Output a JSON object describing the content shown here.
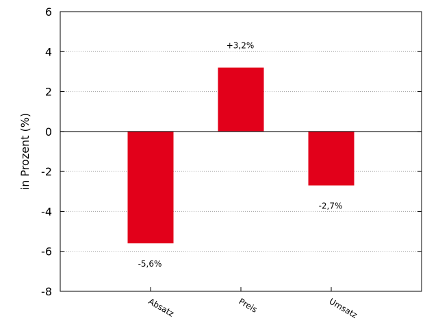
{
  "chart_data": {
    "type": "bar",
    "categories": [
      "Absatz",
      "Preis",
      "Umsatz"
    ],
    "values": [
      -5.6,
      3.2,
      -2.7
    ],
    "data_labels": [
      "-5,6%",
      "+3,2%",
      "-2,7%"
    ],
    "ylabel": "in Prozent (%)",
    "ylim": [
      -8,
      6
    ],
    "yticks": [
      6,
      4,
      2,
      0,
      -2,
      -4,
      -6,
      -8
    ],
    "xlim": [
      0,
      4
    ],
    "bar_color": "#e2001a",
    "grid": true,
    "zero_line": true
  }
}
